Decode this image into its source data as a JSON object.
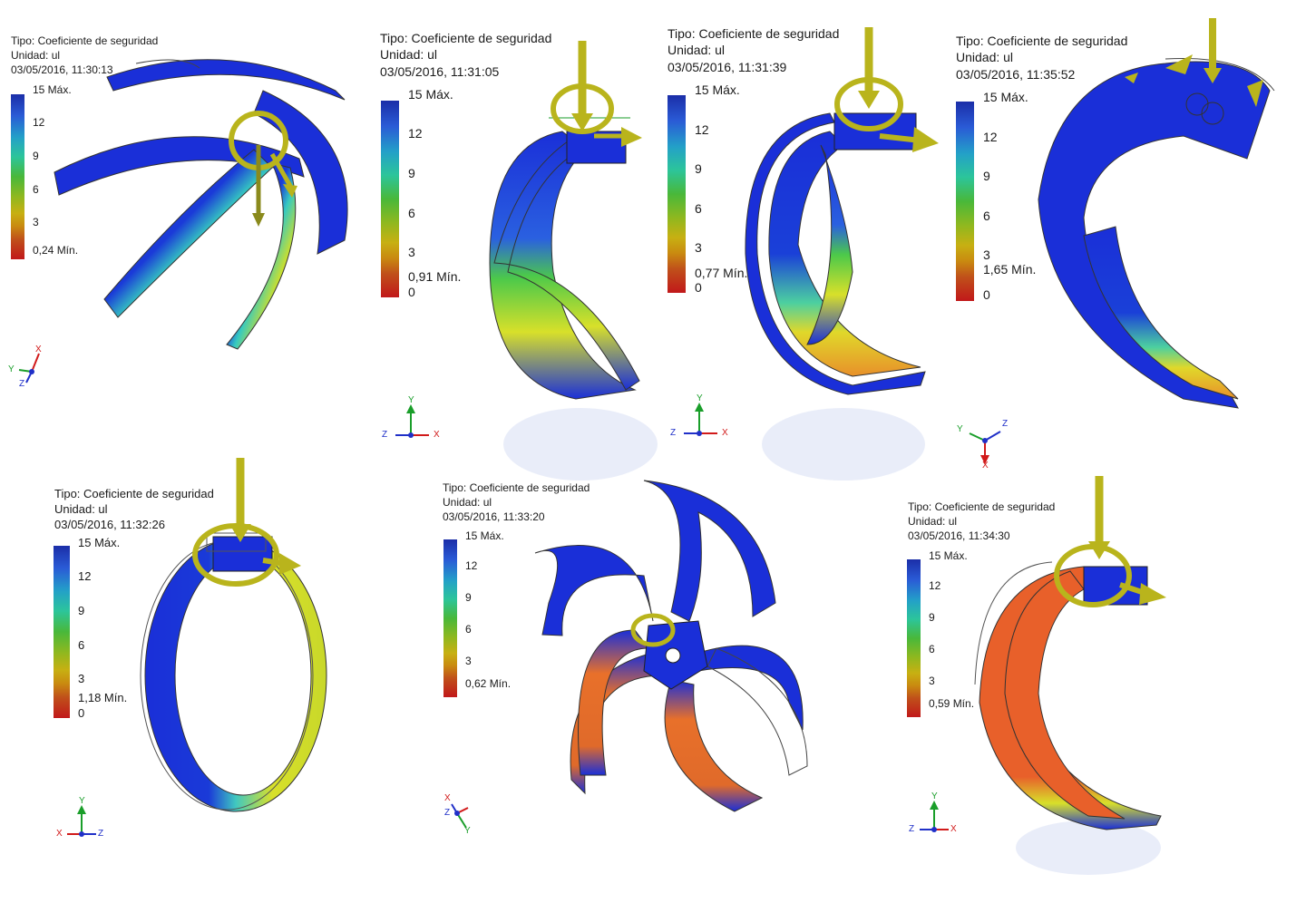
{
  "panels": [
    {
      "type": "Tipo: Coeficiente de seguridad",
      "unit": "Unidad: ul",
      "date": "03/05/2016, 11:30:13",
      "max": "15 Máx.",
      "ticks": [
        "12",
        "9",
        "6",
        "3"
      ],
      "min": "0,24 Mín.",
      "zero": "",
      "axes": {
        "a": "Y",
        "b": "X",
        "c": "Z"
      }
    },
    {
      "type": "Tipo: Coeficiente de seguridad",
      "unit": "Unidad: ul",
      "date": "03/05/2016, 11:31:05",
      "max": "15 Máx.",
      "ticks": [
        "12",
        "9",
        "6",
        "3"
      ],
      "min": "0,91 Mín.",
      "zero": "0",
      "axes": {
        "a": "Y",
        "b": "Z",
        "c": "X"
      }
    },
    {
      "type": "Tipo: Coeficiente de seguridad",
      "unit": "Unidad: ul",
      "date": "03/05/2016, 11:31:39",
      "max": "15 Máx.",
      "ticks": [
        "12",
        "9",
        "6",
        "3"
      ],
      "min": "0,77 Mín.",
      "zero": "0",
      "axes": {
        "a": "Y",
        "b": "Z",
        "c": "X"
      }
    },
    {
      "type": "Tipo: Coeficiente de seguridad",
      "unit": "Unidad: ul",
      "date": "03/05/2016, 11:35:52",
      "max": "15 Máx.",
      "ticks": [
        "12",
        "9",
        "6",
        "3"
      ],
      "min": "1,65 Mín.",
      "zero": "0",
      "axes": {
        "a": "Y",
        "b": "Z",
        "c": "X"
      }
    },
    {
      "type": "Tipo: Coeficiente de seguridad",
      "unit": "Unidad: ul",
      "date": "03/05/2016, 11:32:26",
      "max": "15 Máx.",
      "ticks": [
        "12",
        "9",
        "6",
        "3"
      ],
      "min": "1,18 Mín.",
      "zero": "0",
      "axes": {
        "a": "Y",
        "b": "X",
        "c": "Z"
      }
    },
    {
      "type": "Tipo: Coeficiente de seguridad",
      "unit": "Unidad: ul",
      "date": "03/05/2016, 11:33:20",
      "max": "15 Máx.",
      "ticks": [
        "12",
        "9",
        "6",
        "3"
      ],
      "min": "0,62 Mín.",
      "zero": "",
      "axes": {
        "a": "Y",
        "b": "X",
        "c": "Z"
      }
    },
    {
      "type": "Tipo: Coeficiente de seguridad",
      "unit": "Unidad: ul",
      "date": "03/05/2016, 11:34:30",
      "max": "15 Máx.",
      "ticks": [
        "12",
        "9",
        "6",
        "3"
      ],
      "min": "0,59 Mín.",
      "zero": "",
      "axes": {
        "a": "Y",
        "b": "Z",
        "c": "X"
      }
    }
  ],
  "colors": {
    "high": "#1a2fd8",
    "mid": "#37c96a",
    "yellow": "#d8e02a",
    "orange": "#e8702a",
    "low": "#c1181a",
    "load": "#b9b41c",
    "axis_y": "#1a9e2a",
    "axis_x": "#d11a1a",
    "axis_z": "#2030c8"
  }
}
